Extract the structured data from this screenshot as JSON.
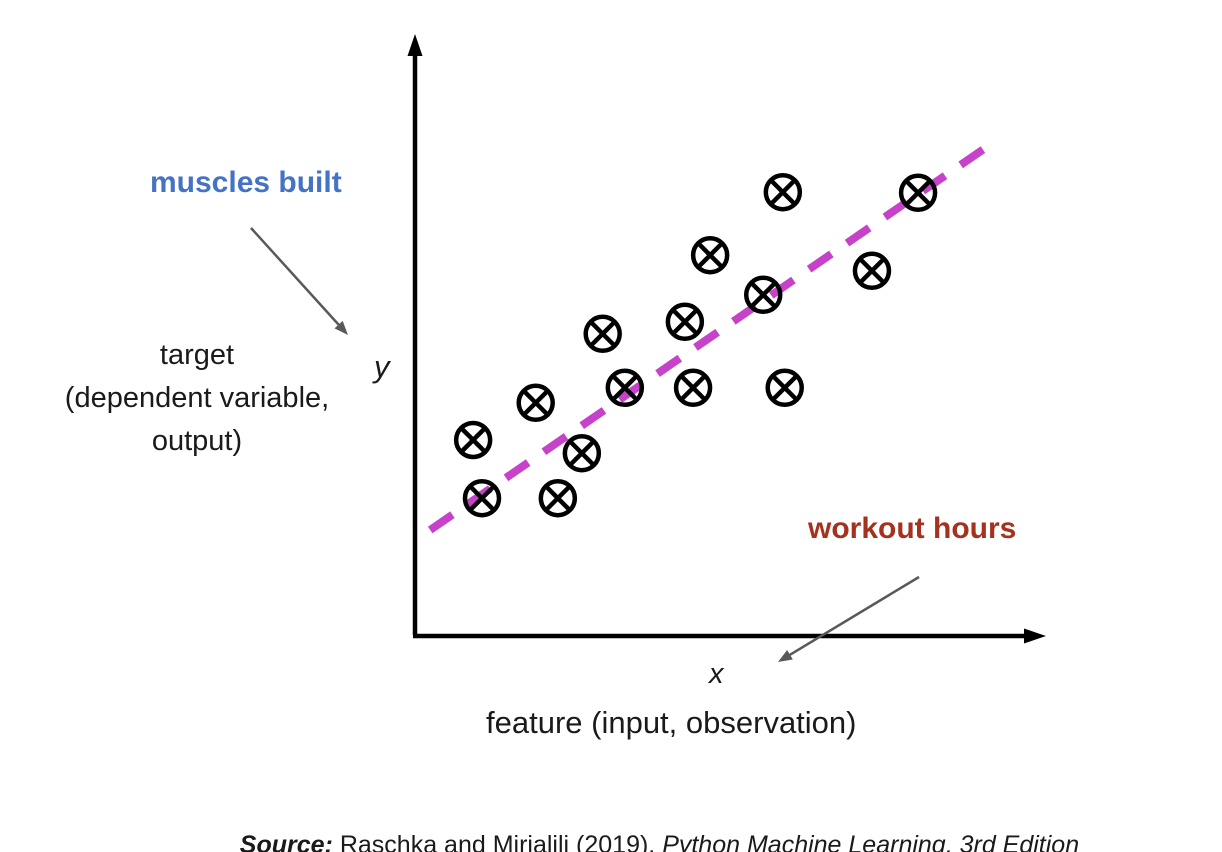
{
  "colors": {
    "annotation_blue": "#4472C4",
    "annotation_red": "#A5321E",
    "regression_line": "#C643C9",
    "marker": "#000000",
    "axis": "#000000",
    "arrow_gray": "#595959"
  },
  "annotations": {
    "target_alias": "muscles built",
    "feature_alias": "workout hours"
  },
  "axes": {
    "y": {
      "symbol": "y",
      "description_lines": [
        "target",
        "(dependent variable,",
        "output)"
      ]
    },
    "x": {
      "symbol": "x",
      "description": "feature (input, observation)"
    }
  },
  "source": {
    "prefix": "Source:",
    "citation": " Raschka and Mirjalili (2019). ",
    "book": "Python Machine Learning, 3rd Edition"
  },
  "chart_data": {
    "type": "scatter",
    "title": "",
    "xlabel": "feature (input, observation)",
    "ylabel": "target (dependent variable, output)",
    "x_symbol": "x",
    "y_symbol": "y",
    "axis_range_x": [
      0,
      100
    ],
    "axis_range_y": [
      0,
      100
    ],
    "grid": false,
    "legend": "none",
    "marker_style": "circled-x",
    "points": [
      [
        58.2,
        73.8
      ],
      [
        79.6,
        73.7
      ],
      [
        46.7,
        63.3
      ],
      [
        72.3,
        60.7
      ],
      [
        55.1,
        56.7
      ],
      [
        42.7,
        52.2
      ],
      [
        29.7,
        50.2
      ],
      [
        33.2,
        41.2
      ],
      [
        44.0,
        41.2
      ],
      [
        58.5,
        41.2
      ],
      [
        19.1,
        38.7
      ],
      [
        9.2,
        32.5
      ],
      [
        26.4,
        30.3
      ],
      [
        10.6,
        22.8
      ],
      [
        22.6,
        22.8
      ]
    ],
    "regression_line": {
      "style": "dashed",
      "color": "#C643C9",
      "from": [
        2.4,
        17.5
      ],
      "to": [
        91.1,
        81.8
      ]
    },
    "callouts": [
      {
        "text": "muscles built",
        "refers_to": "y-axis (target)",
        "color": "#4472C4"
      },
      {
        "text": "workout hours",
        "refers_to": "x-axis (feature)",
        "color": "#A5321E"
      }
    ]
  }
}
